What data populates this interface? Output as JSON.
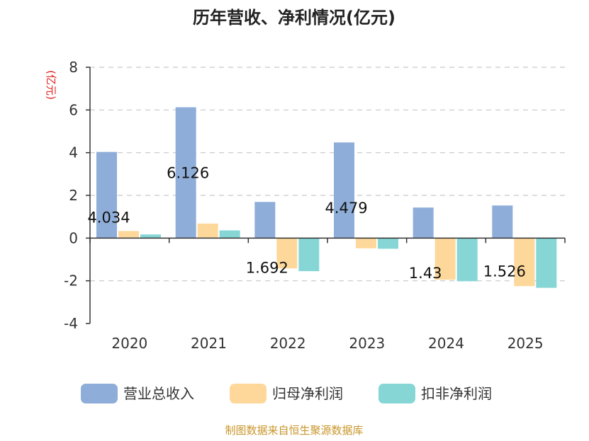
{
  "chart_data": {
    "type": "bar",
    "title": "历年营收、净利情况(亿元)",
    "ylabel": "(亿元)",
    "categories": [
      "2020",
      "2021",
      "2022",
      "2023",
      "2024",
      "2025"
    ],
    "ylim": [
      -4,
      8
    ],
    "yticks": [
      "-4",
      "-2",
      "0",
      "2",
      "4",
      "6",
      "8"
    ],
    "grid": true,
    "legend_position": "bottom",
    "series": [
      {
        "name": "营业总收入",
        "color": "#8eadd9",
        "values": [
          4.034,
          6.126,
          1.692,
          4.479,
          1.43,
          1.526
        ],
        "data_labels": [
          "4.034",
          "6.126",
          "1.692",
          "4.479",
          "1.43",
          "1.526"
        ]
      },
      {
        "name": "归母净利润",
        "color": "#fdd89a",
        "values": [
          0.33,
          0.68,
          -1.42,
          -0.48,
          -1.95,
          -2.25
        ]
      },
      {
        "name": "扣非净利润",
        "color": "#86d6d6",
        "values": [
          0.17,
          0.36,
          -1.55,
          -0.5,
          -2.02,
          -2.33
        ]
      }
    ]
  },
  "footer": {
    "source": "制图数据来自恒生聚源数据库"
  }
}
